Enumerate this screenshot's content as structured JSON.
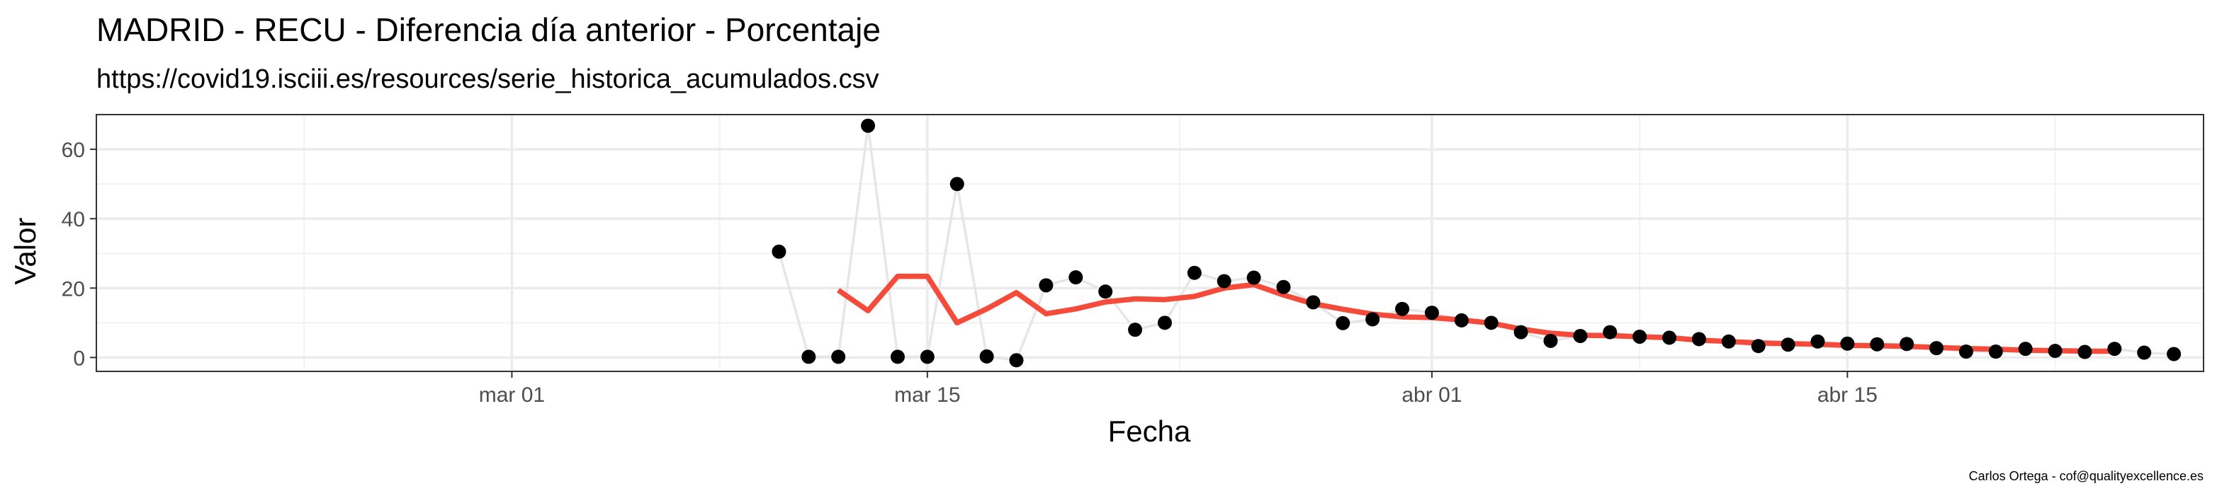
{
  "chart_data": {
    "type": "scatter",
    "title": "MADRID - RECU - Diferencia día anterior - Porcentaje",
    "subtitle": "https://covid19.isciii.es/resources/serie_historica_acumulados.csv",
    "xlabel": "Fecha",
    "ylabel": "Valor",
    "caption": "Carlos Ortega - cof@qualityexcellence.es",
    "xlim": [
      "2020-02-16",
      "2020-04-27"
    ],
    "ylim": [
      -4,
      70
    ],
    "x_ticks": [
      {
        "date": "2020-03-01",
        "label": "mar 01"
      },
      {
        "date": "2020-03-15",
        "label": "mar 15"
      },
      {
        "date": "2020-04-01",
        "label": "abr 01"
      },
      {
        "date": "2020-04-15",
        "label": "abr 15"
      }
    ],
    "y_ticks": [
      0,
      20,
      40,
      60
    ],
    "grid": true,
    "colors": {
      "points": "#000000",
      "raw_line": "#e6e6e6",
      "smooth_line": "#f54b3b",
      "grid_major": "#ebebeb",
      "grid_minor": "#f2f2f2",
      "panel_border": "#333333"
    },
    "series": [
      {
        "type": "scatter",
        "x": [
          "2020-03-10",
          "2020-03-11",
          "2020-03-12",
          "2020-03-13",
          "2020-03-14",
          "2020-03-15",
          "2020-03-16",
          "2020-03-17",
          "2020-03-18",
          "2020-03-19",
          "2020-03-20",
          "2020-03-21",
          "2020-03-22",
          "2020-03-23",
          "2020-03-24",
          "2020-03-25",
          "2020-03-26",
          "2020-03-27",
          "2020-03-28",
          "2020-03-29",
          "2020-03-30",
          "2020-03-31",
          "2020-04-01",
          "2020-04-02",
          "2020-04-03",
          "2020-04-04",
          "2020-04-05",
          "2020-04-06",
          "2020-04-07",
          "2020-04-08",
          "2020-04-09",
          "2020-04-10",
          "2020-04-11",
          "2020-04-12",
          "2020-04-13",
          "2020-04-14",
          "2020-04-15",
          "2020-04-16",
          "2020-04-17",
          "2020-04-18",
          "2020-04-19",
          "2020-04-20",
          "2020-04-21",
          "2020-04-22",
          "2020-04-23",
          "2020-04-24",
          "2020-04-25",
          "2020-04-26"
        ],
        "values": [
          30.5,
          0.2,
          0.2,
          66.8,
          0.2,
          0.2,
          50.0,
          0.3,
          -0.8,
          20.8,
          23.1,
          19.0,
          8.0,
          10.0,
          24.4,
          22.0,
          23.0,
          20.3,
          15.9,
          9.9,
          11.0,
          14.0,
          12.9,
          10.7,
          10.0,
          7.3,
          4.8,
          6.2,
          7.3,
          6.0,
          5.7,
          5.3,
          4.6,
          3.3,
          3.7,
          4.6,
          4.0,
          3.8,
          3.9,
          2.7,
          1.7,
          1.7,
          2.5,
          1.9,
          1.6,
          2.5,
          1.4,
          1.0
        ]
      },
      {
        "type": "line",
        "x": [
          "2020-03-12",
          "2020-03-13",
          "2020-03-14",
          "2020-03-15",
          "2020-03-16",
          "2020-03-17",
          "2020-03-18",
          "2020-03-19",
          "2020-03-20",
          "2020-03-21",
          "2020-03-22",
          "2020-03-23",
          "2020-03-24",
          "2020-03-25",
          "2020-03-26",
          "2020-03-27",
          "2020-03-28",
          "2020-03-29",
          "2020-03-30",
          "2020-03-31",
          "2020-04-01",
          "2020-04-02",
          "2020-04-03",
          "2020-04-04",
          "2020-04-05",
          "2020-04-06",
          "2020-04-07",
          "2020-04-08",
          "2020-04-09",
          "2020-04-10",
          "2020-04-11",
          "2020-04-12",
          "2020-04-13",
          "2020-04-14",
          "2020-04-15",
          "2020-04-16",
          "2020-04-17",
          "2020-04-18",
          "2020-04-19",
          "2020-04-20",
          "2020-04-21",
          "2020-04-22",
          "2020-04-23",
          "2020-04-24"
        ],
        "values": [
          19.4,
          13.5,
          23.4,
          23.4,
          10.0,
          14.0,
          18.7,
          12.6,
          14.0,
          16.0,
          16.9,
          16.7,
          17.6,
          20.0,
          21.0,
          18.0,
          15.5,
          13.9,
          12.5,
          11.7,
          11.5,
          10.8,
          9.9,
          8.2,
          7.0,
          6.4,
          6.3,
          6.0,
          5.7,
          5.0,
          4.6,
          4.2,
          4.0,
          3.8,
          3.5,
          3.4,
          3.2,
          2.9,
          2.6,
          2.4,
          2.1,
          2.0,
          1.8,
          1.8
        ]
      }
    ]
  }
}
